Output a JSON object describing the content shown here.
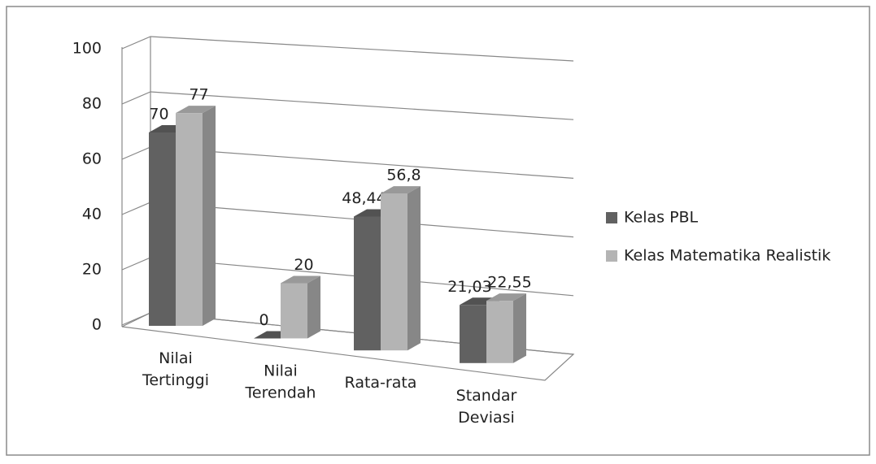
{
  "chart_data": {
    "type": "bar3d",
    "categories": [
      "Nilai Tertinggi",
      "Nilai Terendah",
      "Rata-rata",
      "Standar Deviasi"
    ],
    "series": [
      {
        "name": "Kelas PBL",
        "color": "#616161",
        "values": [
          70,
          0,
          48.44,
          21.03
        ],
        "value_labels": [
          "70",
          "0",
          "48,44",
          "21,03"
        ]
      },
      {
        "name": "Kelas Matematika Realistik",
        "color": "#b4b4b4",
        "values": [
          77,
          20,
          56.8,
          22.55
        ],
        "value_labels": [
          "77",
          "20",
          "56,8",
          "22,55"
        ]
      }
    ],
    "ylim": [
      0,
      100
    ],
    "yticks": [
      0,
      20,
      40,
      60,
      80,
      100
    ],
    "grid": true,
    "legend": "right"
  }
}
